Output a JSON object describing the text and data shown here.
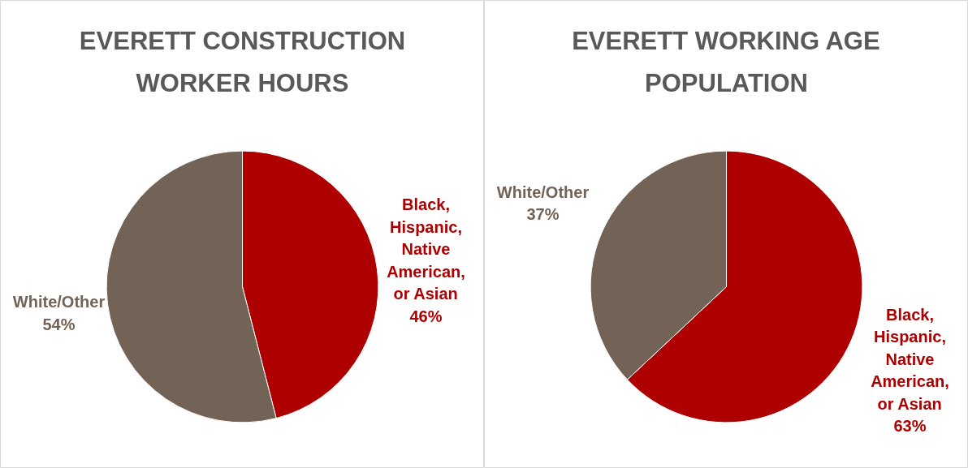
{
  "chart_data": [
    {
      "type": "pie",
      "title": "EVERETT CONSTRUCTION WORKER HOURS",
      "categories": [
        "Black, Hispanic, Native American, or Asian",
        "White/Other"
      ],
      "values": [
        46,
        54
      ],
      "value_labels": [
        "46%",
        "54%"
      ],
      "colors": [
        "#ae0000",
        "#736357"
      ],
      "legend": false
    },
    {
      "type": "pie",
      "title": "EVERETT WORKING AGE POPULATION",
      "categories": [
        "Black, Hispanic, Native American, or Asian",
        "White/Other"
      ],
      "values": [
        63,
        37
      ],
      "value_labels": [
        "63%",
        "37%"
      ],
      "colors": [
        "#ae0000",
        "#736357"
      ],
      "legend": false
    }
  ]
}
